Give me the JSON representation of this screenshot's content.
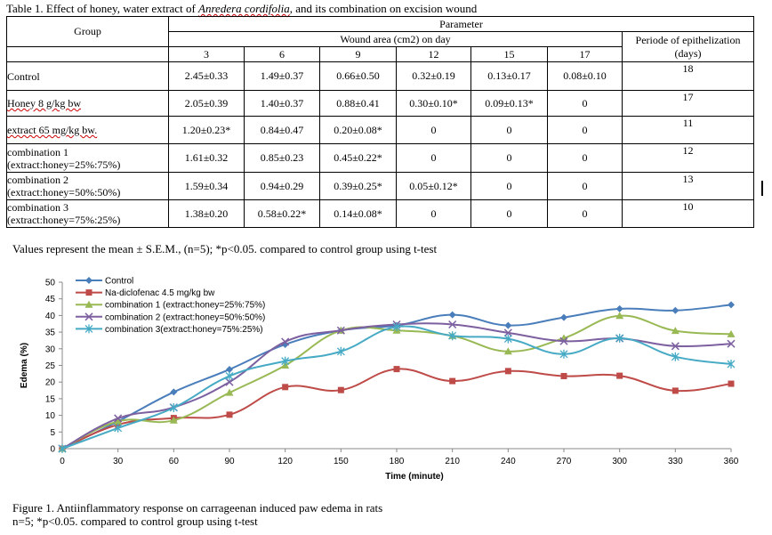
{
  "table": {
    "caption_prefix": "Table 1. Effect of honey, water extract of ",
    "caption_species": "Anredera cordifolia",
    "caption_suffix": ", and its combination on excision wound",
    "group_header": "Group",
    "parameter_header": "Parameter",
    "wound_area_header": "Wound area (cm2) on day",
    "epithelization_header_1": "Periode of epithelization",
    "epithelization_header_2": "(days)",
    "days": [
      "3",
      "6",
      "9",
      "12",
      "15",
      "17"
    ],
    "rows": [
      {
        "group": [
          "Control"
        ],
        "values": [
          "2.45±0.33",
          "1.49±0.37",
          "0.66±0.50",
          "0.32±0.19",
          "0.13±0.17",
          "0.08±0.10"
        ],
        "epithelization": "18"
      },
      {
        "group": [
          "Honey 8 g/kg bw"
        ],
        "values": [
          "2.05±0.39",
          "1.40±0.37",
          "0.88±0.41",
          "0.30±0.10*",
          "0.09±0.13*",
          "0"
        ],
        "epithelization": "17"
      },
      {
        "group": [
          "extract 65 mg/kg bw."
        ],
        "values": [
          "1.20±0.23*",
          "0.84±0.47",
          "0.20±0.08*",
          "0",
          "0",
          "0"
        ],
        "epithelization": "11"
      },
      {
        "group": [
          "combination 1",
          "(extract:honey=25%:75%)"
        ],
        "values": [
          "1.61±0.32",
          "0.85±0.23",
          "0.45±0.22*",
          "0",
          "0",
          "0"
        ],
        "epithelization": "12"
      },
      {
        "group": [
          "combination 2",
          "(extract:honey=50%:50%)"
        ],
        "values": [
          "1.59±0.34",
          "0.94±0.29",
          "0.39±0.25*",
          "0.05±0.12*",
          "0",
          "0"
        ],
        "epithelization": "13"
      },
      {
        "group": [
          "combination 3",
          "(extract:honey=75%:25%)"
        ],
        "values": [
          "1.38±0.20",
          "0.58±0.22*",
          "0.14±0.08*",
          "0",
          "0",
          "0"
        ],
        "epithelization": "10"
      }
    ],
    "footnote": "Values represent the mean ± S.E.M., (n=5); *p<0.05. compared to control group using t-test"
  },
  "figure": {
    "caption_line1": "Figure 1. Antiinflammatory response on carrageenan induced paw edema in rats",
    "caption_line2": "n=5; *p<0.05. compared to control group using t-test"
  },
  "chart_data": {
    "type": "line",
    "xlabel": "Time (minute)",
    "ylabel": "Edema (%)",
    "x": [
      0,
      30,
      60,
      90,
      120,
      150,
      180,
      210,
      240,
      270,
      300,
      330,
      360
    ],
    "xlim": [
      0,
      360
    ],
    "ylim": [
      0,
      50
    ],
    "yticks": [
      0,
      5,
      10,
      15,
      20,
      25,
      30,
      35,
      40,
      45,
      50
    ],
    "grid": false,
    "legend": "top-left",
    "series": [
      {
        "name": "Control",
        "color": "#4a7ebb",
        "marker": "diamond",
        "values": [
          0,
          8.2,
          17.0,
          23.8,
          31.3,
          35.5,
          37.0,
          40.2,
          37.0,
          39.4,
          42.0,
          41.5,
          43.2
        ]
      },
      {
        "name": "Na-diclofenac 4.5 mg/kg bw",
        "color": "#be4b48",
        "marker": "square",
        "values": [
          0,
          7.2,
          9.2,
          10.2,
          18.5,
          17.6,
          23.9,
          20.3,
          23.3,
          21.8,
          21.9,
          17.4,
          19.5
        ]
      },
      {
        "name": "combination 1 (extract:honey=25%:75%)",
        "color": "#98b954",
        "marker": "triangle",
        "values": [
          0,
          8.2,
          8.5,
          16.8,
          25.0,
          35.5,
          35.5,
          33.9,
          29.2,
          33.2,
          39.9,
          35.4,
          34.4
        ]
      },
      {
        "name": "combination 2 (extract:honey=50%:50%)",
        "color": "#7d60a0",
        "marker": "x",
        "values": [
          0,
          9.1,
          12.4,
          20.0,
          32.1,
          35.5,
          37.3,
          37.3,
          34.8,
          32.3,
          33.1,
          30.8,
          31.5
        ]
      },
      {
        "name": "combination 3(extract:honey=75%:25%)",
        "color": "#46aac5",
        "marker": "star",
        "values": [
          0,
          6.2,
          12.3,
          21.8,
          26.3,
          29.2,
          36.6,
          33.9,
          33.0,
          28.4,
          33.2,
          27.6,
          25.4
        ]
      }
    ]
  }
}
